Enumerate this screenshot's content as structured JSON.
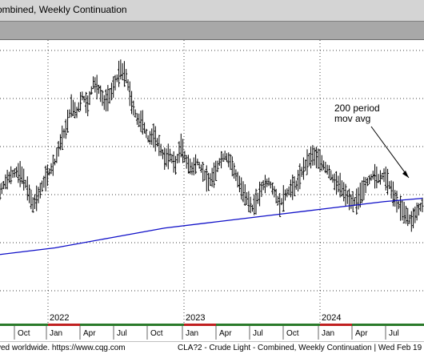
{
  "window": {
    "title": "ombined, Weekly Continuation",
    "status_left": "ved worldwide. https://www.cqg.com",
    "status_right": "CLA?2 - Crude Light - Combined, Weekly Continuation | Wed Feb 19"
  },
  "colors": {
    "price_bars": "#000000",
    "moving_average": "#1010c8",
    "grid": "#000000",
    "title_bar": "#d4d4d4",
    "band": "#a8a8a8"
  },
  "chart_data": {
    "type": "bar",
    "title": "",
    "grid": true,
    "years": [
      "2022",
      "2023",
      "2024"
    ],
    "months": [
      "Oct",
      "Jan",
      "Apr",
      "Jul",
      "Oct",
      "Jan",
      "Apr",
      "Jul",
      "Oct",
      "Jan",
      "Apr",
      "Jul"
    ],
    "annotation": {
      "text_line1": "200 period",
      "text_line2": "mov avg"
    },
    "series": [
      {
        "kind": "weekly_ohlc_close",
        "points": [
          [
            0,
            77
          ],
          [
            2,
            80
          ],
          [
            4,
            82
          ],
          [
            6,
            83
          ],
          [
            8,
            82
          ],
          [
            10,
            78
          ],
          [
            12,
            73
          ],
          [
            14,
            76
          ],
          [
            16,
            80
          ],
          [
            18,
            83
          ],
          [
            20,
            86
          ],
          [
            22,
            92
          ],
          [
            24,
            96
          ],
          [
            26,
            103
          ],
          [
            28,
            101
          ],
          [
            30,
            106
          ],
          [
            32,
            103
          ],
          [
            34,
            110
          ],
          [
            36,
            108
          ],
          [
            38,
            104
          ],
          [
            40,
            106
          ],
          [
            42,
            110
          ],
          [
            44,
            114
          ],
          [
            46,
            112
          ],
          [
            48,
            104
          ],
          [
            50,
            99
          ],
          [
            52,
            98
          ],
          [
            54,
            93
          ],
          [
            56,
            94
          ],
          [
            58,
            91
          ],
          [
            60,
            87
          ],
          [
            62,
            88
          ],
          [
            64,
            85
          ],
          [
            66,
            91
          ],
          [
            68,
            86
          ],
          [
            70,
            84
          ],
          [
            72,
            86
          ],
          [
            74,
            83
          ],
          [
            76,
            80
          ],
          [
            78,
            82
          ],
          [
            80,
            86
          ],
          [
            82,
            88
          ],
          [
            84,
            86
          ],
          [
            86,
            82
          ],
          [
            88,
            78
          ],
          [
            90,
            75
          ],
          [
            92,
            72
          ],
          [
            94,
            75
          ],
          [
            96,
            79
          ],
          [
            98,
            80
          ],
          [
            100,
            77
          ],
          [
            102,
            73
          ],
          [
            104,
            76
          ],
          [
            106,
            78
          ],
          [
            108,
            79
          ],
          [
            110,
            83
          ],
          [
            112,
            86
          ],
          [
            114,
            88
          ],
          [
            116,
            87
          ],
          [
            118,
            85
          ],
          [
            120,
            83
          ],
          [
            122,
            80
          ],
          [
            124,
            79
          ],
          [
            126,
            76
          ],
          [
            128,
            74
          ],
          [
            130,
            74
          ],
          [
            132,
            77
          ],
          [
            134,
            80
          ],
          [
            136,
            82
          ],
          [
            138,
            81
          ],
          [
            140,
            82
          ],
          [
            142,
            79
          ],
          [
            144,
            75
          ],
          [
            146,
            72
          ],
          [
            148,
            70
          ],
          [
            150,
            68
          ],
          [
            152,
            71
          ],
          [
            154,
            73
          ]
        ]
      },
      {
        "name": "200 period mov avg",
        "kind": "moving_average",
        "points": [
          [
            0,
            58
          ],
          [
            20,
            60
          ],
          [
            40,
            63
          ],
          [
            60,
            66
          ],
          [
            80,
            68
          ],
          [
            100,
            70
          ],
          [
            120,
            72
          ],
          [
            140,
            74
          ],
          [
            154,
            75
          ]
        ]
      }
    ]
  }
}
